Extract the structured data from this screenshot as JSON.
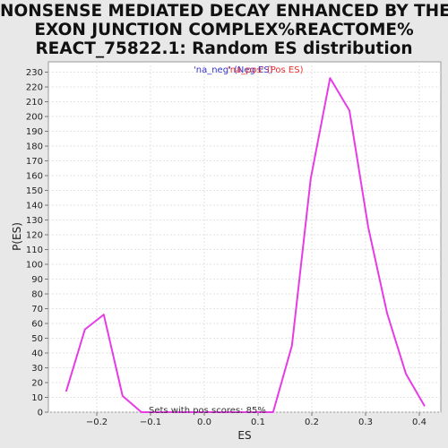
{
  "chart_data": {
    "type": "line",
    "title_lines": [
      "NONSENSE MEDIATED DECAY ENHANCED BY THE",
      "EXON JUNCTION COMPLEX%REACTOME%",
      "REACT_75822.1: Random ES distribution"
    ],
    "xlabel": "ES",
    "ylabel": "P(ES)",
    "xlim": [
      -0.29,
      0.44
    ],
    "ylim": [
      0,
      237
    ],
    "xticks": [
      -0.2,
      -0.1,
      0.0,
      0.1,
      0.2,
      0.3,
      0.4
    ],
    "xtick_labels": [
      "−0.2",
      "−0.1",
      "0.0",
      "0.1",
      "0.2",
      "0.3",
      "0.4"
    ],
    "yticks": [
      0,
      10,
      20,
      30,
      40,
      50,
      60,
      70,
      80,
      90,
      100,
      110,
      120,
      130,
      140,
      150,
      160,
      170,
      180,
      190,
      200,
      210,
      220,
      230
    ],
    "grid": true,
    "legend": {
      "placement": "top-center",
      "entries": [
        {
          "label": "'na_neg' (Neg ES)",
          "color": "#3333cc"
        },
        {
          "label": "'na_pos' (Pos ES)",
          "color": "#e83030"
        }
      ]
    },
    "annotation": "Sets with pos scores: 85%",
    "series": [
      {
        "color": "#e63ce6",
        "x": [
          -0.257,
          -0.222,
          -0.187,
          -0.152,
          -0.117,
          -0.082,
          -0.047,
          -0.012,
          0.023,
          0.058,
          0.093,
          0.128,
          0.163,
          0.198,
          0.234,
          0.27,
          0.305,
          0.34,
          0.375,
          0.41
        ],
        "y": [
          14,
          56,
          66,
          11,
          0,
          0,
          0,
          0,
          0,
          0,
          0,
          0,
          45,
          158,
          226,
          204,
          125,
          67,
          26,
          4
        ]
      }
    ]
  }
}
